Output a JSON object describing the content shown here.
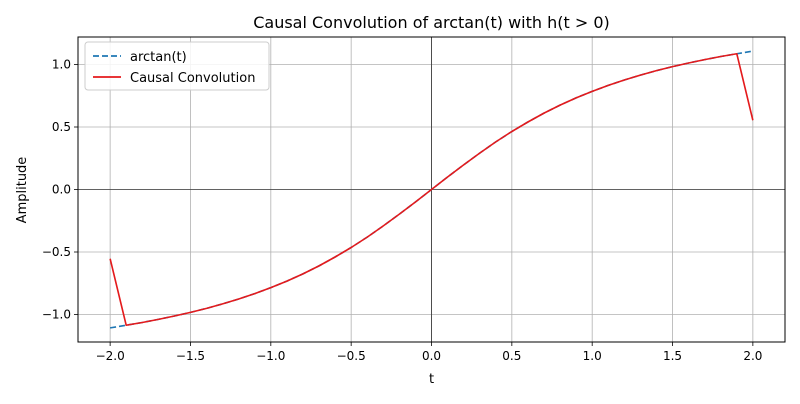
{
  "chart_data": {
    "type": "line",
    "title": "Causal Convolution of arctan(t) with h(t > 0)",
    "xlabel": "t",
    "ylabel": "Amplitude",
    "xlim": [
      -2.2,
      2.2
    ],
    "ylim": [
      -1.22,
      1.22
    ],
    "x_ticks": [
      -2.0,
      -1.5,
      -1.0,
      -0.5,
      0.0,
      0.5,
      1.0,
      1.5,
      2.0
    ],
    "x_tick_labels": [
      "−2.0",
      "−1.5",
      "−1.0",
      "−0.5",
      "0.0",
      "0.5",
      "1.0",
      "1.5",
      "2.0"
    ],
    "y_ticks": [
      -1.0,
      -0.5,
      0.0,
      0.5,
      1.0
    ],
    "y_tick_labels": [
      "−1.0",
      "−0.5",
      "0.0",
      "0.5",
      "1.0"
    ],
    "grid": true,
    "reference_lines": {
      "x": 0,
      "y": 0,
      "color": "#000000"
    },
    "legend_position": "upper-left",
    "series": [
      {
        "name": "arctan(t)",
        "style": "dashed",
        "color": "#1f77b4",
        "x": [
          -2.0,
          -1.9,
          -1.8,
          -1.7,
          -1.6,
          -1.5,
          -1.4,
          -1.3,
          -1.2,
          -1.1,
          -1.0,
          -0.9,
          -0.8,
          -0.7,
          -0.6,
          -0.5,
          -0.4,
          -0.3,
          -0.2,
          -0.1,
          0.0,
          0.1,
          0.2,
          0.3,
          0.4,
          0.5,
          0.6,
          0.7,
          0.8,
          0.9,
          1.0,
          1.1,
          1.2,
          1.3,
          1.4,
          1.5,
          1.6,
          1.7,
          1.8,
          1.9,
          2.0
        ],
        "y": [
          -1.107,
          -1.086,
          -1.064,
          -1.039,
          -1.012,
          -0.983,
          -0.951,
          -0.915,
          -0.876,
          -0.833,
          -0.785,
          -0.733,
          -0.675,
          -0.611,
          -0.54,
          -0.464,
          -0.381,
          -0.291,
          -0.197,
          -0.1,
          0.0,
          0.1,
          0.197,
          0.291,
          0.381,
          0.464,
          0.54,
          0.611,
          0.675,
          0.733,
          0.785,
          0.833,
          0.876,
          0.915,
          0.951,
          0.983,
          1.012,
          1.039,
          1.064,
          1.086,
          1.107
        ]
      },
      {
        "name": "Causal Convolution",
        "style": "solid",
        "color": "#e41a1c",
        "x": [
          -2.0,
          -1.9,
          -1.8,
          -1.7,
          -1.6,
          -1.5,
          -1.4,
          -1.3,
          -1.2,
          -1.1,
          -1.0,
          -0.9,
          -0.8,
          -0.7,
          -0.6,
          -0.5,
          -0.4,
          -0.3,
          -0.2,
          -0.1,
          0.0,
          0.1,
          0.2,
          0.3,
          0.4,
          0.5,
          0.6,
          0.7,
          0.8,
          0.9,
          1.0,
          1.1,
          1.2,
          1.3,
          1.4,
          1.5,
          1.6,
          1.7,
          1.8,
          1.9,
          2.0
        ],
        "y": [
          -0.554,
          -1.086,
          -1.064,
          -1.039,
          -1.012,
          -0.983,
          -0.951,
          -0.915,
          -0.876,
          -0.833,
          -0.785,
          -0.733,
          -0.675,
          -0.611,
          -0.54,
          -0.464,
          -0.381,
          -0.291,
          -0.197,
          -0.1,
          0.0,
          0.1,
          0.197,
          0.291,
          0.381,
          0.464,
          0.54,
          0.611,
          0.675,
          0.733,
          0.785,
          0.833,
          0.876,
          0.915,
          0.951,
          0.983,
          1.012,
          1.039,
          1.064,
          1.086,
          0.554
        ]
      }
    ]
  }
}
